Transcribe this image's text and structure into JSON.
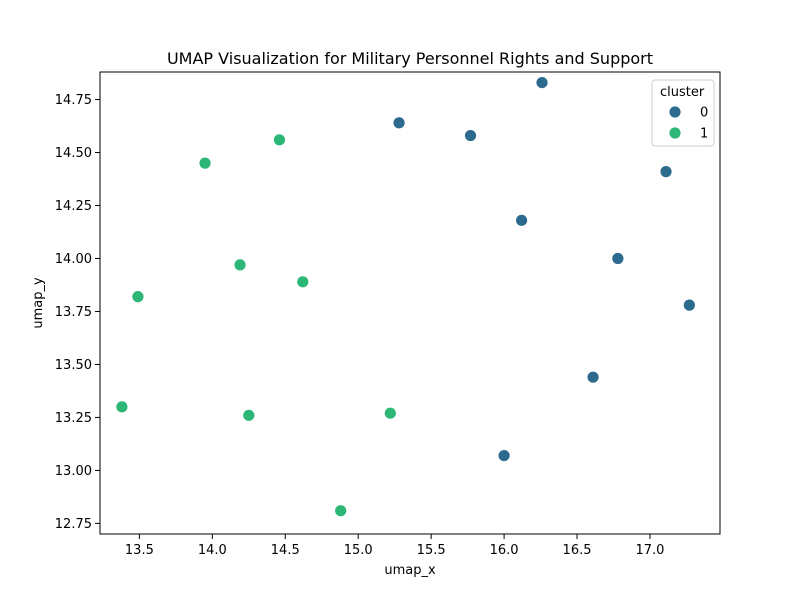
{
  "chart_data": {
    "type": "scatter",
    "title": "UMAP Visualization for Military Personnel Rights and Support",
    "xlabel": "umap_x",
    "ylabel": "umap_y",
    "xlim": [
      13.23,
      17.48
    ],
    "ylim": [
      12.7,
      14.88
    ],
    "xticks": [
      13.5,
      14.0,
      14.5,
      15.0,
      15.5,
      16.0,
      16.5,
      17.0
    ],
    "yticks": [
      12.75,
      13.0,
      13.25,
      13.5,
      13.75,
      14.0,
      14.25,
      14.5,
      14.75
    ],
    "grid": false,
    "legend": {
      "title": "cluster",
      "placement": "top-right",
      "entries": [
        {
          "label": "0",
          "color": "#2c6b8e"
        },
        {
          "label": "1",
          "color": "#2db776"
        }
      ]
    },
    "series": [
      {
        "name": "0",
        "color": "#2c6b8e",
        "points": [
          {
            "x": 16.26,
            "y": 14.83
          },
          {
            "x": 15.28,
            "y": 14.64
          },
          {
            "x": 15.77,
            "y": 14.58
          },
          {
            "x": 17.11,
            "y": 14.41
          },
          {
            "x": 16.12,
            "y": 14.18
          },
          {
            "x": 16.78,
            "y": 14.0
          },
          {
            "x": 17.27,
            "y": 13.78
          },
          {
            "x": 16.61,
            "y": 13.44
          },
          {
            "x": 16.0,
            "y": 13.07
          }
        ]
      },
      {
        "name": "1",
        "color": "#2db776",
        "points": [
          {
            "x": 14.46,
            "y": 14.56
          },
          {
            "x": 13.95,
            "y": 14.45
          },
          {
            "x": 14.19,
            "y": 13.97
          },
          {
            "x": 14.62,
            "y": 13.89
          },
          {
            "x": 13.49,
            "y": 13.82
          },
          {
            "x": 13.38,
            "y": 13.3
          },
          {
            "x": 14.25,
            "y": 13.26
          },
          {
            "x": 15.22,
            "y": 13.27
          },
          {
            "x": 14.88,
            "y": 12.81
          }
        ]
      }
    ]
  }
}
